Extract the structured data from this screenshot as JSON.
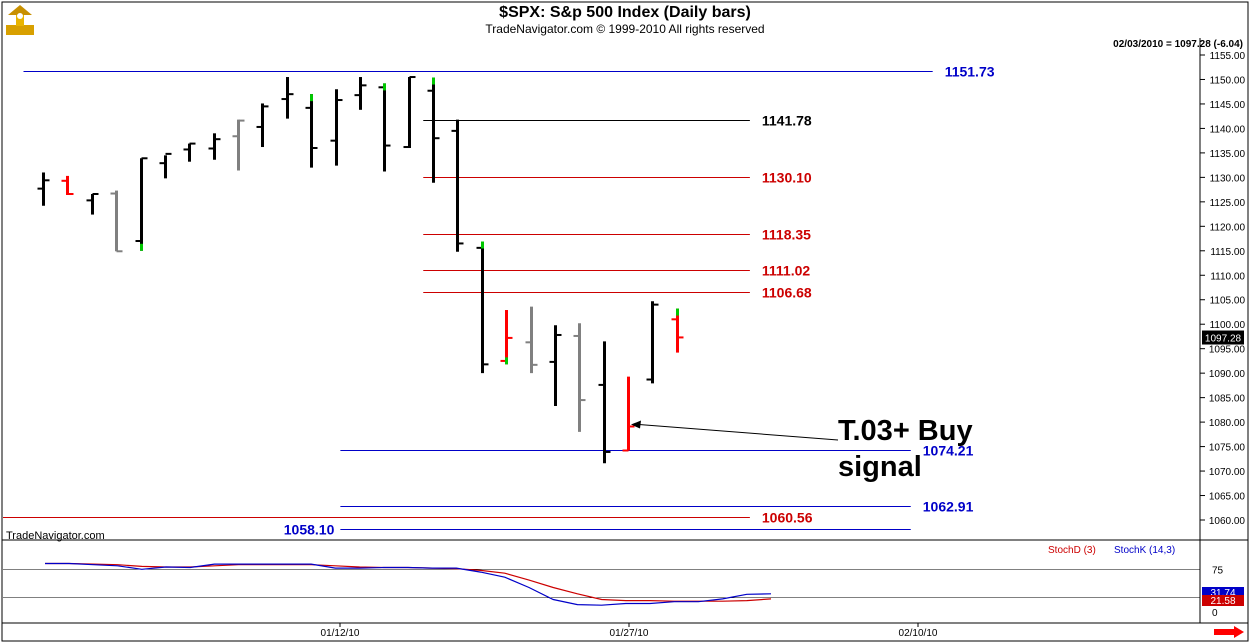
{
  "header": {
    "title": "$SPX:  S&p 500 Index  (Daily bars)",
    "copyright": "TradeNavigator.com © 1999-2010 All rights reserved",
    "quote": "02/03/2010 = 1097.28 (-6.04)",
    "watermark": "TradeNavigator.com"
  },
  "colors": {
    "up_bar": "#000000",
    "down_bar": "#ff0000",
    "neutral_bar": "#808080",
    "mark_green": "#00c800",
    "support_line": "#0000c8",
    "resistance_line": "#cc0000",
    "stoch_d": "#cc0000",
    "stoch_k": "#0000c8"
  },
  "chart_data": [
    {
      "type": "ohlc",
      "name": "price",
      "ylim": [
        1055,
        1158
      ],
      "y_ticks": [
        "1155.00",
        "1150.00",
        "1145.00",
        "1140.00",
        "1135.00",
        "1130.00",
        "1125.00",
        "1120.00",
        "1115.00",
        "1110.00",
        "1105.00",
        "1100.00",
        "1095.00",
        "1090.00",
        "1085.00",
        "1080.00",
        "1075.00",
        "1070.00",
        "1065.00",
        "1060.00"
      ],
      "last_price_label": "1097.28",
      "x_labels": [
        "01/12/10",
        "01/27/10",
        "02/10/10"
      ],
      "bars": [
        {
          "x": 1,
          "o": 1127.7,
          "h": 1131.0,
          "l": 1124.2,
          "c": 1129.4,
          "color": "up"
        },
        {
          "x": 2,
          "o": 1129.3,
          "h": 1130.3,
          "l": 1126.4,
          "c": 1126.6,
          "color": "down"
        },
        {
          "x": 3,
          "o": 1125.3,
          "h": 1126.6,
          "l": 1122.4,
          "c": 1126.6,
          "color": "up"
        },
        {
          "x": 4,
          "o": 1126.7,
          "h": 1127.3,
          "l": 1114.9,
          "c": 1114.9,
          "color": "neutral"
        },
        {
          "x": 5,
          "o": 1117.0,
          "h": 1133.9,
          "l": 1115.0,
          "c": 1133.9,
          "color": "up",
          "mark": "low"
        },
        {
          "x": 6,
          "o": 1132.9,
          "h": 1134.5,
          "l": 1129.8,
          "c": 1134.8,
          "color": "up"
        },
        {
          "x": 7,
          "o": 1135.7,
          "h": 1136.9,
          "l": 1133.2,
          "c": 1136.9,
          "color": "up"
        },
        {
          "x": 8,
          "o": 1135.9,
          "h": 1139.0,
          "l": 1133.6,
          "c": 1137.8,
          "color": "up"
        },
        {
          "x": 9,
          "o": 1138.4,
          "h": 1141.8,
          "l": 1131.4,
          "c": 1141.6,
          "color": "neutral"
        },
        {
          "x": 10,
          "o": 1140.3,
          "h": 1145.1,
          "l": 1136.2,
          "c": 1144.5,
          "color": "up"
        },
        {
          "x": 11,
          "o": 1146.0,
          "h": 1150.5,
          "l": 1142.0,
          "c": 1147.0,
          "color": "up"
        },
        {
          "x": 12,
          "o": 1144.2,
          "h": 1147.0,
          "l": 1132.0,
          "c": 1136.0,
          "color": "up",
          "mark": "high"
        },
        {
          "x": 13,
          "o": 1137.5,
          "h": 1148.0,
          "l": 1132.4,
          "c": 1145.8,
          "color": "up"
        },
        {
          "x": 14,
          "o": 1146.8,
          "h": 1150.5,
          "l": 1143.8,
          "c": 1148.8,
          "color": "up"
        },
        {
          "x": 15,
          "o": 1148.4,
          "h": 1149.2,
          "l": 1131.2,
          "c": 1136.5,
          "color": "up",
          "mark": "high"
        },
        {
          "x": 16,
          "o": 1136.2,
          "h": 1150.5,
          "l": 1136.0,
          "c": 1150.5,
          "color": "up"
        },
        {
          "x": 17,
          "o": 1147.7,
          "h": 1150.4,
          "l": 1128.9,
          "c": 1138.0,
          "color": "up",
          "mark": "high"
        },
        {
          "x": 18,
          "o": 1139.5,
          "h": 1141.8,
          "l": 1114.8,
          "c": 1116.5,
          "color": "up"
        },
        {
          "x": 19,
          "o": 1115.6,
          "h": 1116.9,
          "l": 1090.0,
          "c": 1091.8,
          "color": "up",
          "mark": "high"
        },
        {
          "x": 20,
          "o": 1092.5,
          "h": 1102.9,
          "l": 1091.8,
          "c": 1097.2,
          "color": "down",
          "mark": "low"
        },
        {
          "x": 21,
          "o": 1096.3,
          "h": 1103.6,
          "l": 1090.0,
          "c": 1091.7,
          "color": "neutral"
        },
        {
          "x": 22,
          "o": 1092.3,
          "h": 1099.8,
          "l": 1083.3,
          "c": 1097.8,
          "color": "up"
        },
        {
          "x": 23,
          "o": 1097.6,
          "h": 1100.2,
          "l": 1078.0,
          "c": 1084.5,
          "color": "neutral"
        },
        {
          "x": 24,
          "o": 1087.6,
          "h": 1096.5,
          "l": 1071.6,
          "c": 1073.9,
          "color": "up"
        },
        {
          "x": 25,
          "o": 1074.2,
          "h": 1089.3,
          "l": 1074.2,
          "c": 1079.1,
          "color": "down"
        },
        {
          "x": 26,
          "o": 1088.7,
          "h": 1104.7,
          "l": 1087.9,
          "c": 1104.0,
          "color": "up"
        },
        {
          "x": 27,
          "o": 1101.0,
          "h": 1103.2,
          "l": 1094.2,
          "c": 1097.3,
          "color": "down",
          "mark": "high"
        }
      ],
      "levels": [
        {
          "value": 1151.73,
          "label": "1151.73",
          "color": "support",
          "x_from": 0.2,
          "x_to": 37.5,
          "label_side": "right"
        },
        {
          "value": 1141.78,
          "label": "1141.78",
          "color": "black",
          "x_from": 16.6,
          "x_to": 30.0,
          "label_side": "right"
        },
        {
          "value": 1130.1,
          "label": "1130.10",
          "color": "resistance",
          "x_from": 16.6,
          "x_to": 30.0,
          "label_side": "right"
        },
        {
          "value": 1118.35,
          "label": "1118.35",
          "color": "resistance",
          "x_from": 16.6,
          "x_to": 30.0,
          "label_side": "right"
        },
        {
          "value": 1111.02,
          "label": "1111.02",
          "color": "resistance",
          "x_from": 16.6,
          "x_to": 30.0,
          "label_side": "right"
        },
        {
          "value": 1106.68,
          "label": "1106.68",
          "color": "resistance",
          "x_from": 16.6,
          "x_to": 30.0,
          "label_side": "right"
        },
        {
          "value": 1074.21,
          "label": "1074.21",
          "color": "support",
          "x_from": 13.2,
          "x_to": 36.6,
          "label_side": "right"
        },
        {
          "value": 1062.91,
          "label": "1062.91",
          "color": "support",
          "x_from": 13.2,
          "x_to": 36.6,
          "label_side": "right"
        },
        {
          "value": 1060.56,
          "label": "1060.56",
          "color": "resistance",
          "x_from": -1.0,
          "x_to": 30.0,
          "label_side": "right"
        },
        {
          "value": 1058.1,
          "label": "1058.10",
          "color": "support",
          "x_from": 13.2,
          "x_to": 36.6,
          "label_side": "left"
        }
      ],
      "annotation": {
        "text_line1": "T.03+ Buy",
        "text_line2": "signal",
        "points_to_bar": 25,
        "points_to_value": 1079.5
      }
    },
    {
      "type": "line",
      "name": "stochastic",
      "ylim": [
        0,
        100
      ],
      "y_ticks": [
        "75",
        "25",
        "0"
      ],
      "legend": [
        "StochD (3)",
        "StochK (14,3)"
      ],
      "value_labels": [
        "31.74",
        "21.58"
      ],
      "series": [
        {
          "name": "StochD (3)",
          "color": "red",
          "values": [
            85,
            85,
            84,
            83,
            80,
            79,
            79,
            81,
            83,
            83,
            83,
            83,
            81,
            79,
            78,
            78,
            77,
            76,
            73,
            68,
            56,
            43,
            32,
            22,
            20,
            20,
            19,
            19,
            19,
            20,
            23
          ]
        },
        {
          "name": "StochK (14,3)",
          "color": "blue",
          "values": [
            85,
            85,
            83,
            81,
            75,
            79,
            78,
            84,
            84,
            84,
            84,
            84,
            77,
            77,
            78,
            78,
            77,
            77,
            70,
            61,
            43,
            22,
            13,
            12,
            15,
            15,
            18,
            18,
            23,
            31,
            32
          ]
        }
      ]
    }
  ]
}
